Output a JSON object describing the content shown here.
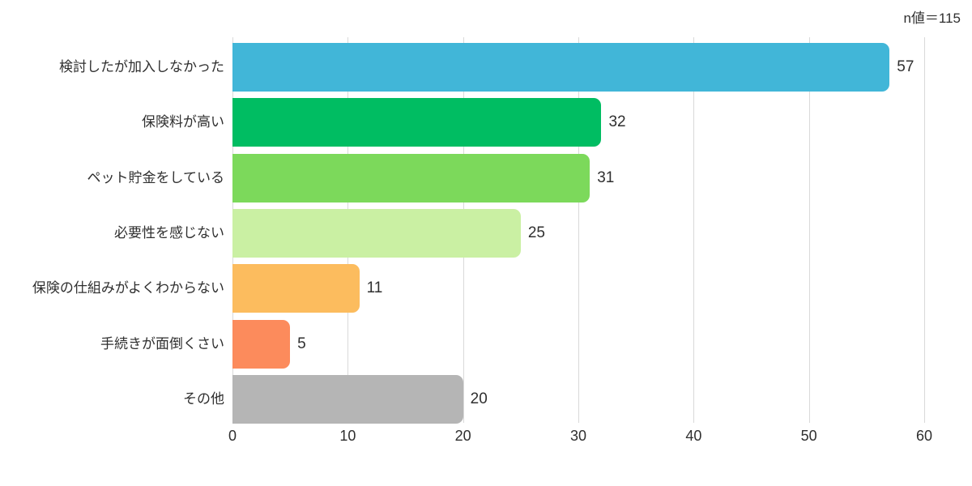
{
  "chart": {
    "n_label": "n値＝115",
    "background": "#ffffff",
    "text_color": "#2f2f2f",
    "gridline_color": "#d9d9d9"
  },
  "chart_data": {
    "type": "bar",
    "orientation": "horizontal",
    "title": "",
    "annotation": "n値＝115",
    "n_value": 115,
    "categories": [
      "検討したが加入しなかった",
      "保険料が高い",
      "ペット貯金をしている",
      "必要性を感じない",
      "保険の仕組みがよくわからない",
      "手続きが面倒くさい",
      "その他"
    ],
    "values": [
      57,
      32,
      31,
      25,
      11,
      5,
      20
    ],
    "bar_colors": [
      "#41b6d8",
      "#00bd62",
      "#7cd95b",
      "#caf0a3",
      "#fcbc5e",
      "#fc8b5c",
      "#b5b5b5"
    ],
    "xlabel": "",
    "ylabel": "",
    "xlim": [
      0,
      60
    ],
    "x_ticks": [
      0,
      10,
      20,
      30,
      40,
      50,
      60
    ],
    "grid": true,
    "value_labels_shown": true,
    "legend": "none"
  }
}
